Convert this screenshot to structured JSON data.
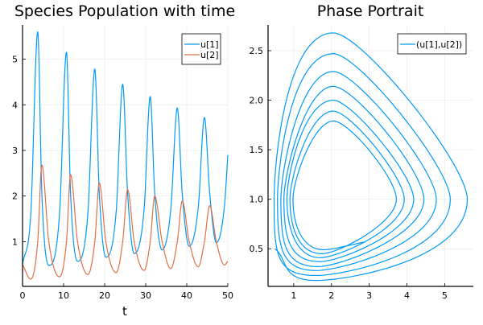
{
  "colors": {
    "u1": "#009AFA",
    "u2": "#E26F46",
    "grid": "#EBEBEB",
    "axis": "#000000"
  },
  "chart_data": [
    {
      "type": "line",
      "title": "Species Population with time",
      "xlabel": "t",
      "ylabel": "",
      "xlim": [
        0,
        50
      ],
      "ylim": [
        0.02,
        5.75
      ],
      "xticks": [
        0,
        10,
        20,
        30,
        40,
        50
      ],
      "yticks": [
        1,
        2,
        3,
        4,
        5
      ],
      "grid": true,
      "legend": "top-right",
      "series": [
        {
          "name": "u[1]",
          "color": "#009AFA",
          "points": [
            [
              0,
              0.5
            ],
            [
              2.0,
              1.6
            ],
            [
              3.7,
              5.6
            ],
            [
              4.7,
              2.05
            ],
            [
              6.4,
              0.48
            ],
            [
              9.0,
              1.6
            ],
            [
              10.7,
              5.15
            ],
            [
              11.7,
              2.05
            ],
            [
              13.4,
              0.57
            ],
            [
              15.9,
              1.6
            ],
            [
              17.6,
              4.78
            ],
            [
              18.7,
              2.05
            ],
            [
              20.3,
              0.66
            ],
            [
              22.8,
              1.65
            ],
            [
              24.4,
              4.45
            ],
            [
              25.6,
              2.05
            ],
            [
              27.2,
              0.74
            ],
            [
              29.6,
              1.7
            ],
            [
              31.1,
              4.18
            ],
            [
              32.2,
              2.05
            ],
            [
              34.0,
              0.82
            ],
            [
              36.1,
              1.7
            ],
            [
              37.7,
              3.93
            ],
            [
              38.9,
              2.05
            ],
            [
              40.6,
              0.9
            ],
            [
              42.8,
              1.75
            ],
            [
              44.3,
              3.72
            ],
            [
              45.6,
              2.05
            ],
            [
              47.2,
              0.98
            ],
            [
              49.2,
              1.8
            ],
            [
              50,
              2.9
            ]
          ]
        },
        {
          "name": "u[2]",
          "color": "#E26F46",
          "points": [
            [
              0,
              0.5
            ],
            [
              2.0,
              0.18
            ],
            [
              3.7,
              1.0
            ],
            [
              4.7,
              2.68
            ],
            [
              6.4,
              1.0
            ],
            [
              9.0,
              0.23
            ],
            [
              10.7,
              1.0
            ],
            [
              11.7,
              2.47
            ],
            [
              13.4,
              1.0
            ],
            [
              15.9,
              0.28
            ],
            [
              17.6,
              1.0
            ],
            [
              18.7,
              2.29
            ],
            [
              20.3,
              1.0
            ],
            [
              22.8,
              0.32
            ],
            [
              24.4,
              1.0
            ],
            [
              25.6,
              2.14
            ],
            [
              27.2,
              1.0
            ],
            [
              29.6,
              0.37
            ],
            [
              31.1,
              1.0
            ],
            [
              32.2,
              2.0
            ],
            [
              34.0,
              1.0
            ],
            [
              36.1,
              0.41
            ],
            [
              37.7,
              1.0
            ],
            [
              38.9,
              1.89
            ],
            [
              40.6,
              1.0
            ],
            [
              42.8,
              0.45
            ],
            [
              44.3,
              1.0
            ],
            [
              45.6,
              1.79
            ],
            [
              47.2,
              1.0
            ],
            [
              49.2,
              0.49
            ],
            [
              50,
              0.57
            ]
          ]
        }
      ]
    },
    {
      "type": "line",
      "title": "Phase Portrait",
      "xlabel": "",
      "ylabel": "",
      "xlim": [
        0.32,
        5.76
      ],
      "ylim": [
        0.12,
        2.76
      ],
      "xticks": [
        1,
        2,
        3,
        4,
        5
      ],
      "yticks": [
        0.5,
        1.0,
        1.5,
        2.0,
        2.5
      ],
      "ytick_labels": [
        "0.5",
        "1.0",
        "1.5",
        "2.0",
        "2.5"
      ],
      "grid": true,
      "legend": "top-right",
      "series": [
        {
          "name": "(u[1],u[2])",
          "color": "#009AFA",
          "x_of": "u[1]",
          "y_of": "u[2]"
        }
      ]
    }
  ]
}
